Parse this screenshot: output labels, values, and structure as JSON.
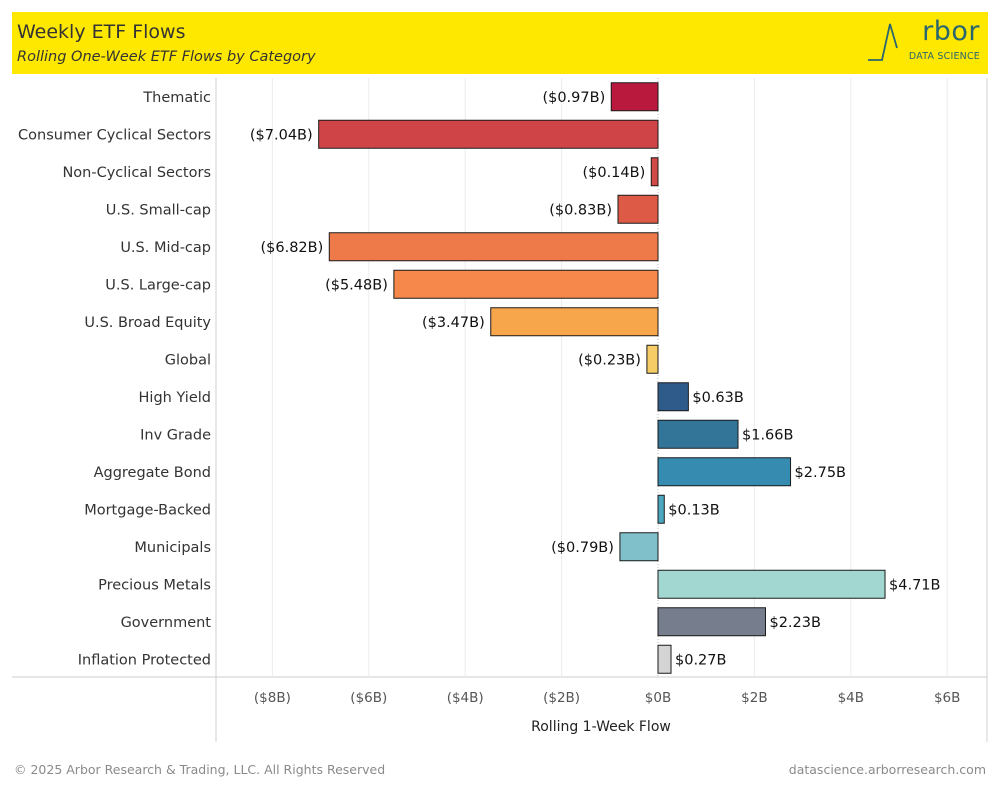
{
  "header": {
    "title": "Weekly ETF Flows",
    "subtitle": "Rolling One-Week ETF Flows by Category",
    "logo_word": "rbor",
    "logo_tagline": "DATA SCIENCE"
  },
  "footer": {
    "copyright": "© 2025 Arbor Research & Trading, LLC. All Rights Reserved",
    "website": "datascience.arborresearch.com"
  },
  "chart_data": {
    "type": "bar",
    "orientation": "horizontal",
    "title": "Weekly ETF Flows",
    "subtitle": "Rolling One-Week ETF Flows by Category",
    "xlabel": "Rolling 1-Week Flow",
    "ylabel": "",
    "unit": "$B",
    "xlim": [
      -9,
      6.7
    ],
    "grid": true,
    "x_ticks": [
      -8,
      -6,
      -4,
      -2,
      0,
      2,
      4,
      6
    ],
    "x_tick_labels": [
      "($8B)",
      "($6B)",
      "($4B)",
      "($2B)",
      "$0B",
      "$2B",
      "$4B",
      "$6B"
    ],
    "categories": [
      "Thematic",
      "Consumer Cyclical Sectors",
      "Non-Cyclical Sectors",
      "U.S. Small-cap",
      "U.S. Mid-cap",
      "U.S. Large-cap",
      "U.S. Broad Equity",
      "Global",
      "High Yield",
      "Inv Grade",
      "Aggregate Bond",
      "Mortgage-Backed",
      "Municipals",
      "Precious Metals",
      "Government",
      "Inflation Protected"
    ],
    "values": [
      -0.97,
      -7.04,
      -0.14,
      -0.83,
      -6.82,
      -5.48,
      -3.47,
      -0.23,
      0.63,
      1.66,
      2.75,
      0.13,
      -0.79,
      4.71,
      2.23,
      0.27
    ],
    "data_labels": [
      "($0.97B)",
      "($7.04B)",
      "($0.14B)",
      "($0.83B)",
      "($6.82B)",
      "($5.48B)",
      "($3.47B)",
      "($0.23B)",
      "$0.63B",
      "$1.66B",
      "$2.75B",
      "$0.13B",
      "($0.79B)",
      "$4.71B",
      "$2.23B",
      "$0.27B"
    ],
    "colors": [
      "#b8193c",
      "#cf4446",
      "#d24a47",
      "#dd5a47",
      "#ee7a4a",
      "#f5884a",
      "#f8a64c",
      "#f5cc65",
      "#2e5b8a",
      "#327599",
      "#358cb0",
      "#4ea7c0",
      "#7fc0cb",
      "#a1d6d1",
      "#767d8c",
      "#d4d4d4"
    ]
  }
}
